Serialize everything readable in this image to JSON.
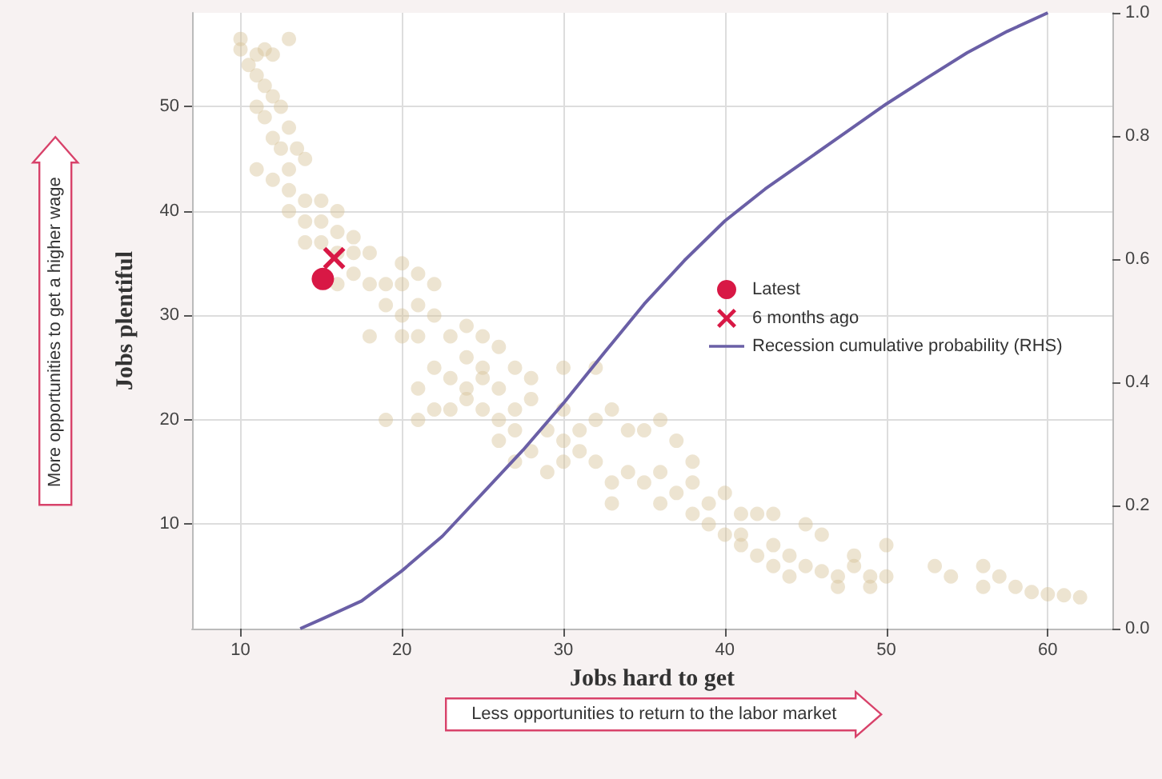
{
  "chart_data": {
    "type": "scatter",
    "xlabel": "Jobs hard to get",
    "ylabel": "Jobs plentiful",
    "annotations": [
      "More opportunities to get a higher wage",
      "Less opportunities to return to the labor market"
    ],
    "xlim": [
      7,
      64
    ],
    "xticks": [
      10,
      20,
      30,
      40,
      50,
      60
    ],
    "ylim": [
      0,
      59
    ],
    "yticks": [
      10,
      20,
      30,
      40,
      50
    ],
    "y2lim": [
      0,
      1
    ],
    "y2ticks": [
      {
        "value": 0,
        "label": "0.0"
      },
      {
        "value": 0.2,
        "label": "0.2"
      },
      {
        "value": 0.4,
        "label": "0.4"
      },
      {
        "value": 0.6,
        "label": "0.6"
      },
      {
        "value": 0.8,
        "label": "0.8"
      },
      {
        "value": 1,
        "label": "1.0"
      }
    ],
    "grid": true,
    "legend": "right",
    "series": [
      {
        "color": "#d8c49a",
        "marker": "circle",
        "x": [
          10,
          10,
          13,
          11,
          11.5,
          12,
          11,
          11.5,
          12,
          11.5,
          12.5,
          12,
          13,
          12.5,
          13.5,
          11,
          12,
          13,
          14,
          13,
          14,
          15,
          14,
          15,
          16,
          16,
          17,
          14,
          15,
          16,
          17,
          18,
          17,
          18,
          19,
          19,
          20,
          21,
          22,
          22,
          21,
          23,
          24,
          25,
          24,
          26,
          20,
          18,
          22,
          23,
          24,
          25,
          26,
          24,
          23,
          25,
          26,
          27,
          28,
          21,
          22,
          19,
          21,
          27,
          28,
          30,
          32,
          29,
          30,
          28,
          31,
          30,
          29,
          32,
          32,
          33,
          34,
          35,
          36,
          37,
          34,
          35,
          33,
          36,
          38,
          37,
          36,
          38,
          39,
          40,
          41,
          39,
          40,
          41,
          42,
          43,
          44,
          45,
          43,
          46,
          47,
          48,
          49,
          50,
          47,
          49,
          44,
          42,
          43,
          45,
          46,
          50,
          48,
          53,
          54,
          56,
          56,
          57,
          58,
          59,
          60,
          61,
          62,
          30,
          31,
          26,
          27,
          20,
          21,
          10.5,
          11,
          13,
          16,
          20,
          25,
          33,
          38,
          41,
          27
        ],
        "values": [
          56.5,
          55.5,
          56.5,
          55,
          55.5,
          55,
          53,
          52,
          51,
          49,
          50,
          47,
          48,
          46,
          46,
          44,
          43,
          44,
          45,
          42,
          41,
          41,
          39,
          39,
          40,
          38,
          37.5,
          37,
          37,
          36,
          36,
          36,
          34,
          33,
          33,
          31,
          30,
          31,
          33,
          30,
          28,
          28,
          29,
          28,
          26,
          27,
          28,
          28,
          25,
          24,
          23,
          24,
          23,
          22,
          21,
          21,
          20,
          21,
          22,
          20,
          21,
          20,
          23,
          25,
          24,
          25,
          25,
          19,
          18,
          17,
          17,
          16,
          15,
          16,
          20,
          21,
          19,
          19,
          20,
          18,
          15,
          14,
          14,
          15,
          14,
          13,
          12,
          11,
          12,
          13,
          11,
          10,
          9,
          8,
          7,
          8,
          7,
          6,
          6,
          5.5,
          5,
          6,
          5,
          5,
          4,
          4,
          5,
          11,
          11,
          10,
          9,
          8,
          7,
          6,
          5,
          6,
          4,
          5,
          4,
          3.5,
          3.3,
          3.2,
          3,
          21,
          19,
          18,
          16,
          35,
          34,
          54,
          50,
          40,
          33,
          33,
          25,
          12,
          16,
          9,
          19
        ]
      },
      {
        "type": "scatter",
        "name": "Latest",
        "color": "#d81845",
        "marker": "circle",
        "x": [
          15.1
        ],
        "values": [
          33.5
        ]
      },
      {
        "type": "scatter",
        "name": "6 months ago",
        "color": "#d81845",
        "marker": "cross",
        "x": [
          15.8
        ],
        "values": [
          35.5
        ]
      },
      {
        "type": "line",
        "name": "Recession cumulative probability (RHS)",
        "color": "#6a5fa6",
        "axis": "y2",
        "marker": "none",
        "x": [
          13.7,
          15,
          17.5,
          20,
          22.5,
          25,
          27.5,
          30,
          32.5,
          35,
          37.5,
          40,
          42.5,
          45,
          47.5,
          50,
          52.5,
          55,
          57.5,
          60
        ],
        "values": [
          0,
          0.015,
          0.045,
          0.094,
          0.15,
          0.22,
          0.29,
          0.366,
          0.447,
          0.527,
          0.598,
          0.662,
          0.714,
          0.76,
          0.806,
          0.852,
          0.894,
          0.935,
          0.97,
          1.0
        ]
      }
    ]
  }
}
